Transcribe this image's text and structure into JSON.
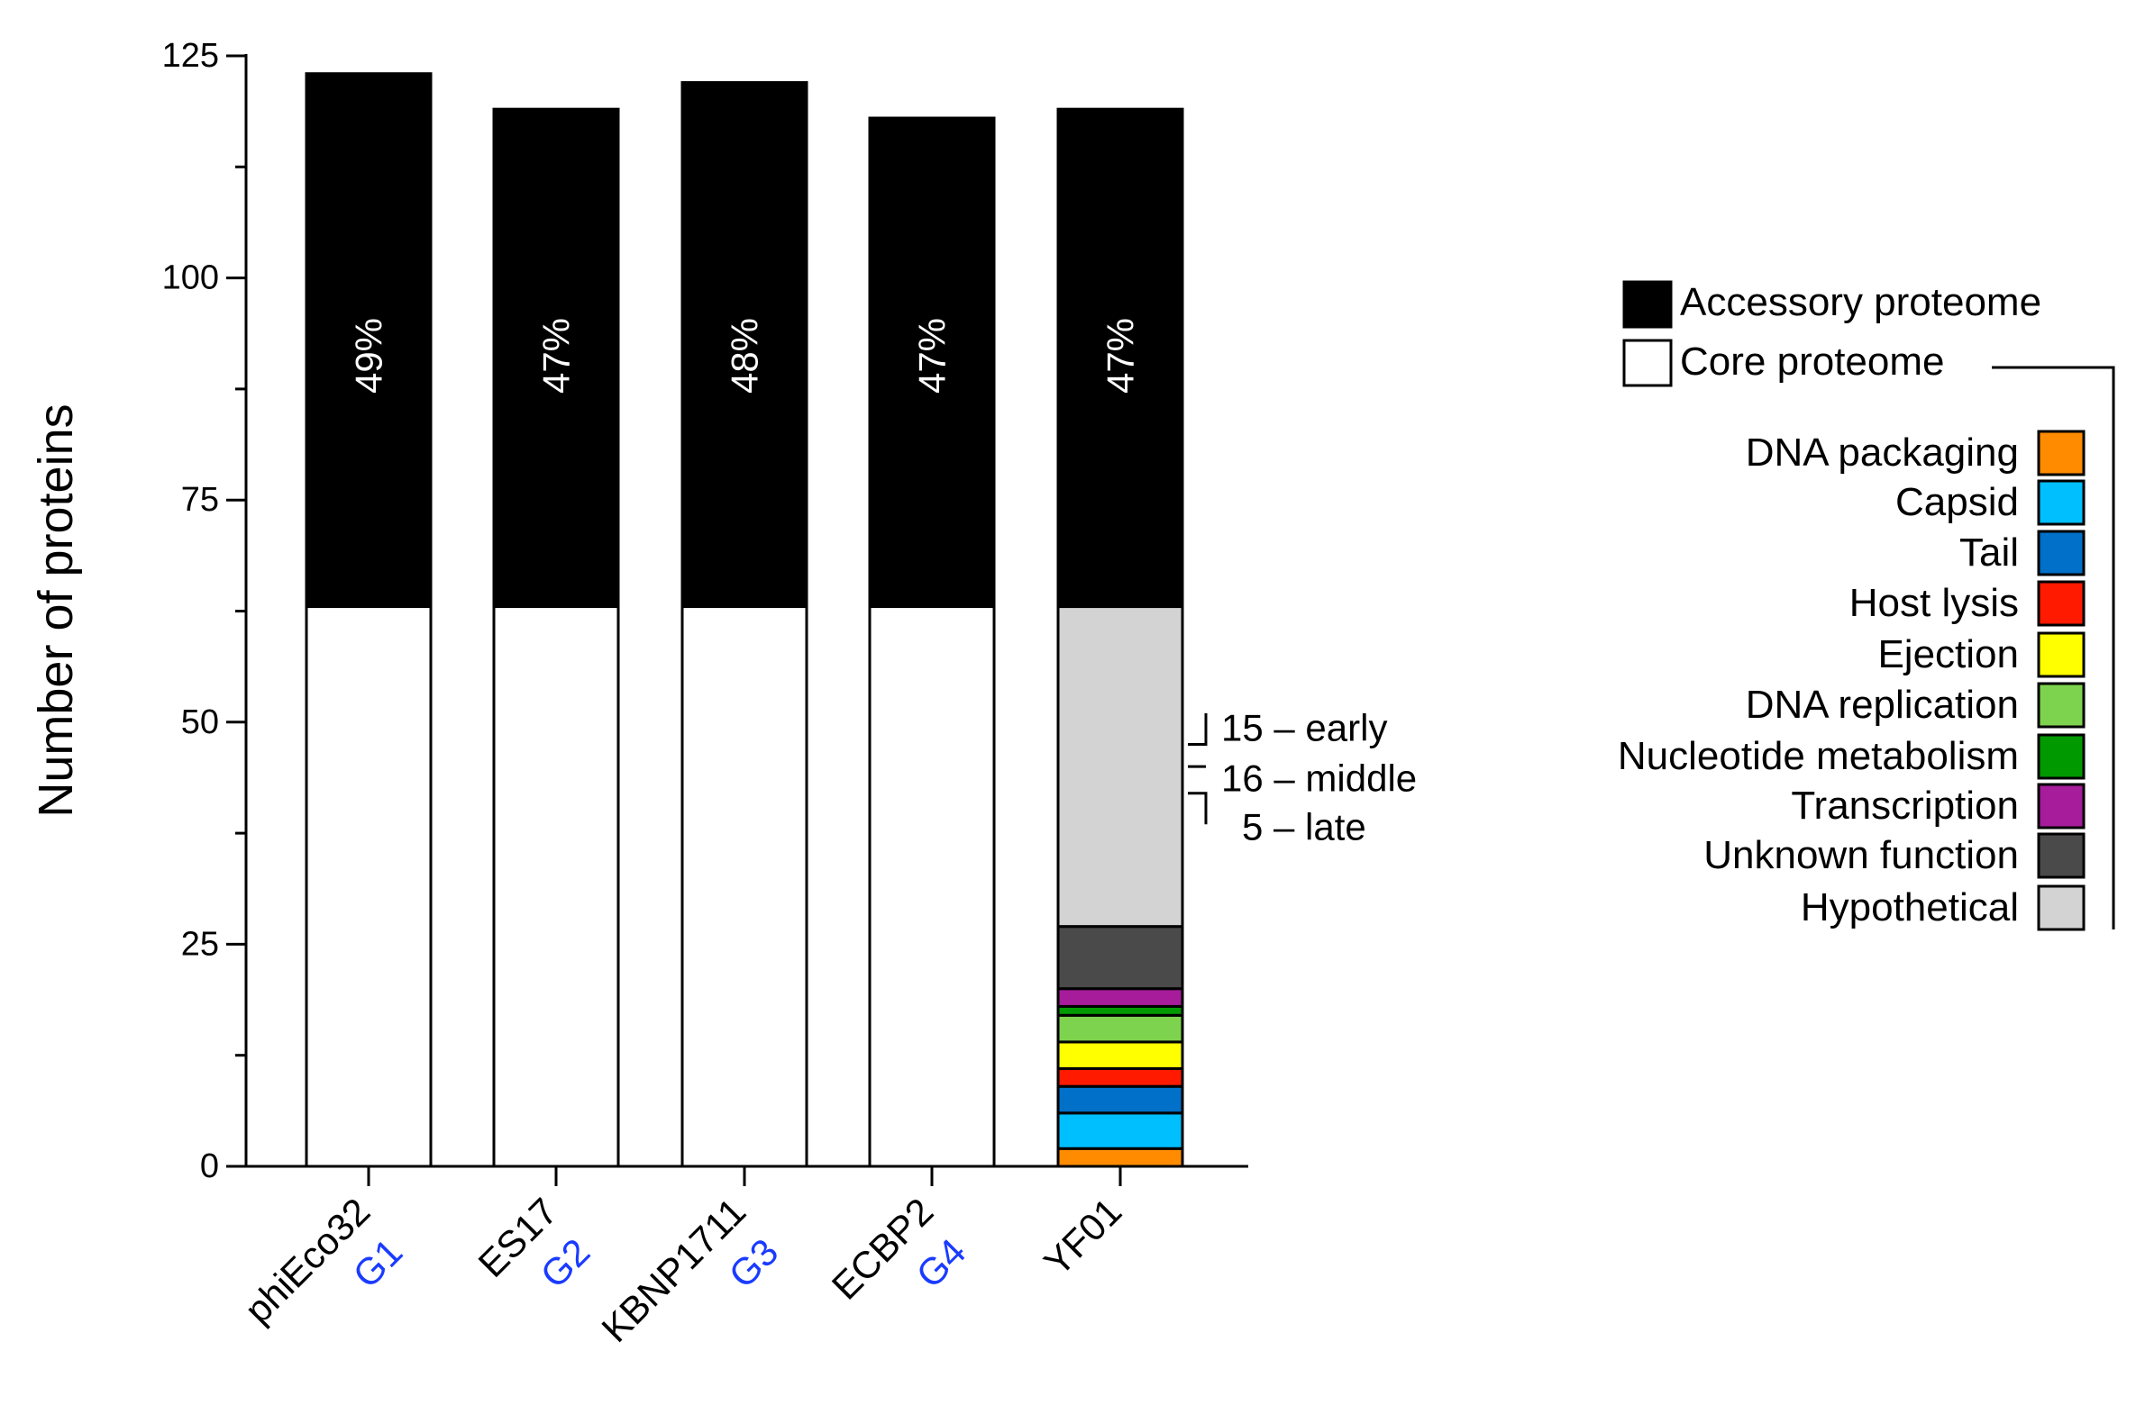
{
  "chart_data": {
    "type": "bar",
    "stacked": true,
    "title": "",
    "ylabel": "Number of proteins",
    "xlabel": "",
    "ylim": [
      0,
      125
    ],
    "yticks": [
      0,
      25,
      50,
      75,
      100,
      125
    ],
    "minor_ticks": [
      12.5,
      37.5,
      62.5,
      87.5,
      112.5
    ],
    "categories": [
      {
        "name": "phiEco32",
        "group": "G1",
        "total": 123,
        "core": 63,
        "accessory_pct": "49%"
      },
      {
        "name": "ES17",
        "group": "G2",
        "total": 119,
        "core": 63,
        "accessory_pct": "47%"
      },
      {
        "name": "KBNP1711",
        "group": "G3",
        "total": 122,
        "core": 63,
        "accessory_pct": "48%"
      },
      {
        "name": "ECBP2",
        "group": "G4",
        "total": 118,
        "core": 63,
        "accessory_pct": "47%"
      },
      {
        "name": "YF01",
        "group": "",
        "total": 119,
        "core": 63,
        "accessory_pct": "47%"
      }
    ],
    "core_breakdown": {
      "category": "YF01",
      "segments": [
        {
          "name": "DNA packaging",
          "value": 2,
          "color": "#FF8C00"
        },
        {
          "name": "Capsid",
          "value": 4,
          "color": "#00BFFF"
        },
        {
          "name": "Tail",
          "value": 3,
          "color": "#0070C8"
        },
        {
          "name": "Host lysis",
          "value": 2,
          "color": "#FF1A00"
        },
        {
          "name": "Ejection",
          "value": 3,
          "color": "#FFFF00"
        },
        {
          "name": "DNA replication",
          "value": 3,
          "color": "#7ED34E"
        },
        {
          "name": "Nucleotide metabolism",
          "value": 1,
          "color": "#009A00"
        },
        {
          "name": "Transcription",
          "value": 2,
          "color": "#A61C9A"
        },
        {
          "name": "Unknown function",
          "value": 7,
          "color": "#4A4A4A"
        },
        {
          "name": "Hypothetical",
          "value": 36,
          "color": "#D3D3D3"
        }
      ]
    },
    "hypothetical_annotations": [
      {
        "label": "15 – early",
        "from": 47.5,
        "to": 51
      },
      {
        "label": "16 – middle",
        "from": 45,
        "to": 45
      },
      {
        "label": "5 – late",
        "from": 38.5,
        "to": 42
      }
    ],
    "legend": {
      "position": "right",
      "accessory": {
        "label": "Accessory proteome",
        "color": "#000000"
      },
      "core": {
        "label": "Core proteome",
        "color": "#FFFFFF"
      }
    },
    "colors": {
      "accessory": "#000000",
      "core": "#FFFFFF",
      "group_label": "#1A3BFF",
      "axis": "#000000"
    }
  }
}
